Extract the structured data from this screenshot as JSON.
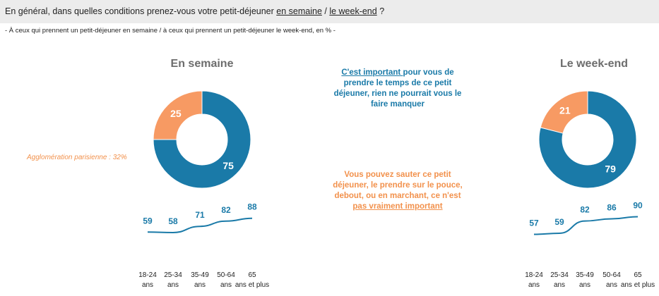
{
  "header": {
    "question_prefix": "En général, dans quelles conditions prenez-vous votre petit-déjeuner ",
    "question_link1": "en semaine",
    "question_sep": " / ",
    "question_link2": "le week-end",
    "question_suffix": " ?",
    "subtitle": "- À ceux qui prennent un petit-déjeuner en semaine / à ceux qui prennent un petit-déjeuner le week-end, en % -"
  },
  "legend": {
    "blue_underlined": "C'est important ",
    "blue_rest": "pour vous de prendre le temps de ce petit déjeuner, rien ne pourrait vous le faire manquer",
    "orange_main": "Vous pouvez sauter ce petit déjeuner, le prendre sur le pouce, debout, ou en marchant, ce n'est ",
    "orange_underlined": "pas vraiment important"
  },
  "note": "Agglomération parisienne : 32%",
  "colors": {
    "important": "#1a7aa8",
    "not_important": "#f79a63",
    "axis_text": "#222222",
    "title_gray": "#6d6d6d"
  },
  "chart_data": [
    {
      "type": "pie",
      "title": "En semaine",
      "categories": [
        "C'est important",
        "Pas vraiment important"
      ],
      "values": [
        75,
        25
      ]
    },
    {
      "type": "line",
      "categories": [
        "18-24 ans",
        "25-34 ans",
        "35-49 ans",
        "50-64 ans",
        "65 ans et plus"
      ],
      "series": [
        {
          "values": [
            59,
            58,
            71,
            82,
            88
          ]
        }
      ]
    },
    {
      "type": "pie",
      "title": "Le week-end",
      "categories": [
        "C'est important",
        "Pas vraiment important"
      ],
      "values": [
        79,
        21
      ]
    },
    {
      "type": "line",
      "categories": [
        "18-24 ans",
        "25-34 ans",
        "35-49 ans",
        "50-64 ans",
        "65 ans et plus"
      ],
      "series": [
        {
          "values": [
            57,
            59,
            82,
            86,
            90
          ]
        }
      ]
    }
  ]
}
